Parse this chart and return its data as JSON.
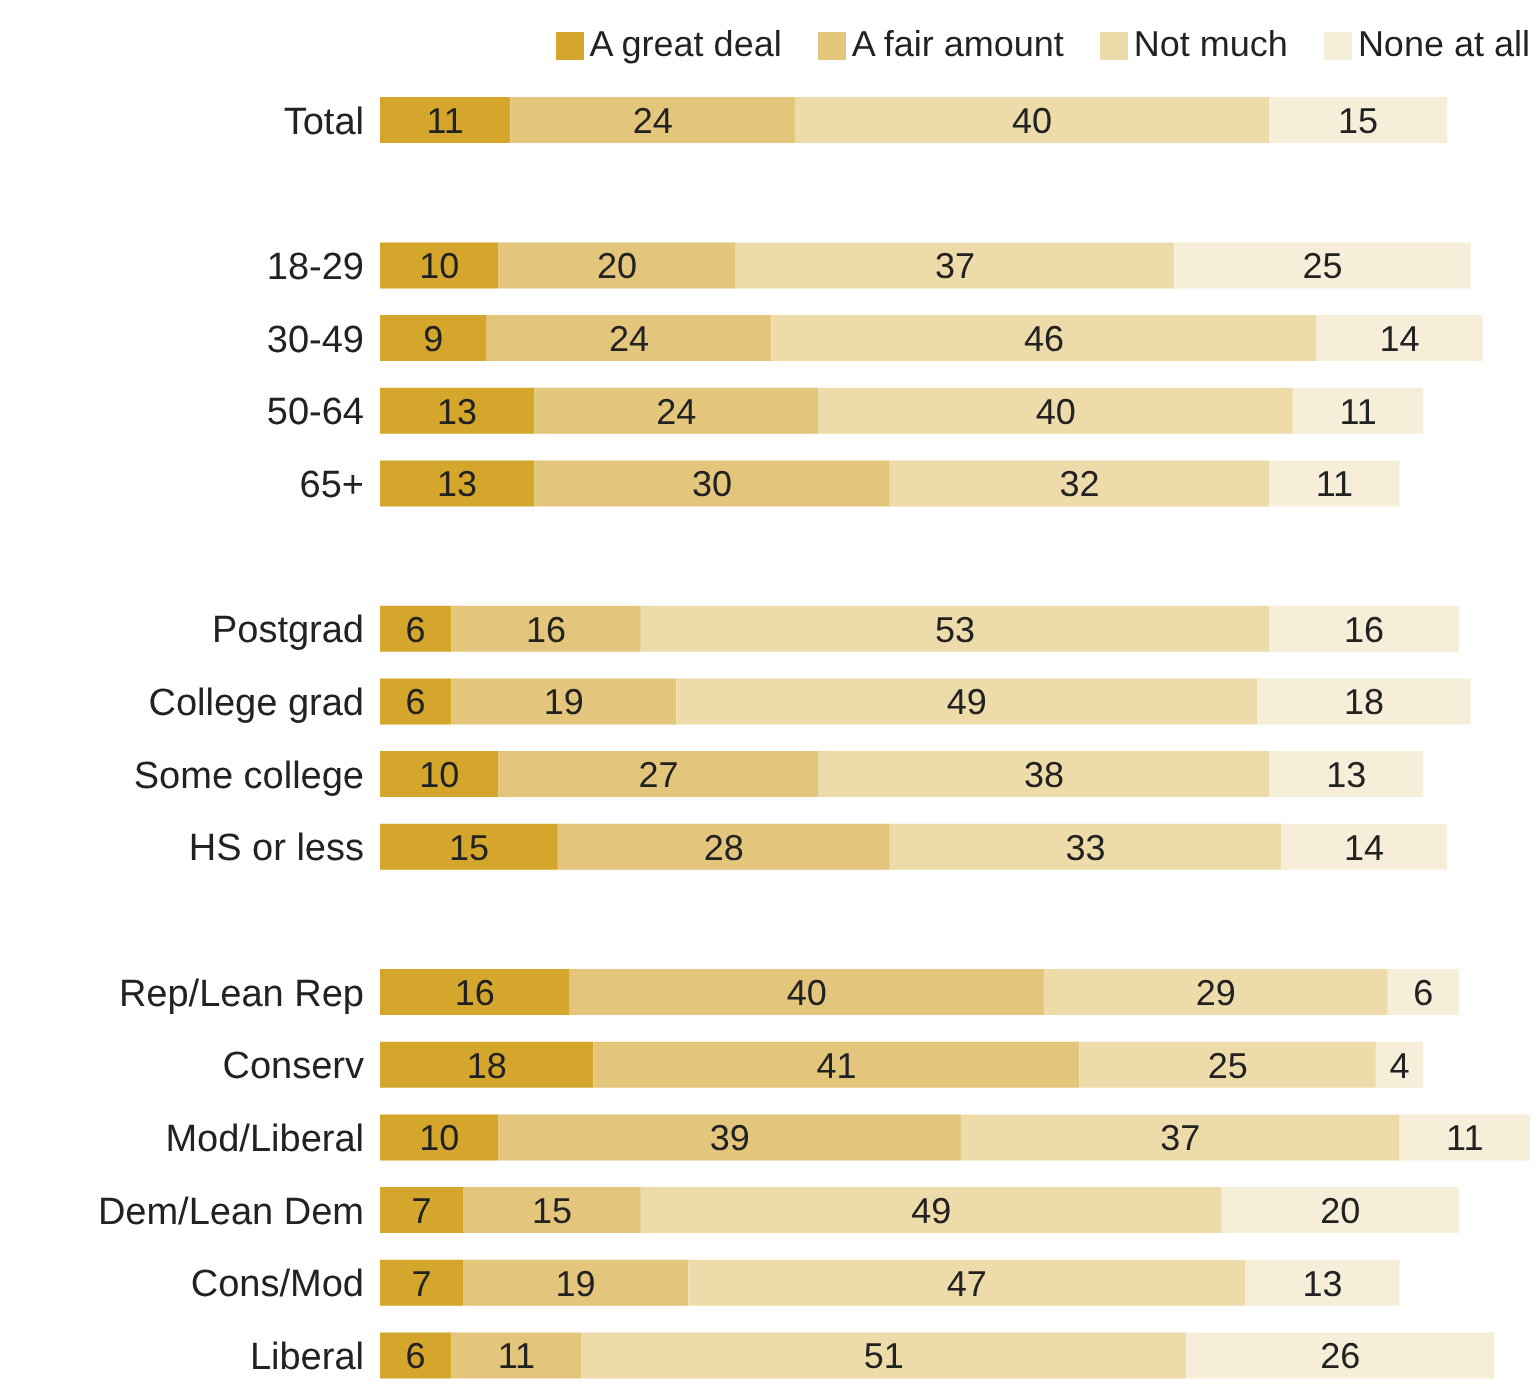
{
  "chart_data": {
    "type": "bar",
    "orientation": "horizontal",
    "stacked": true,
    "data_labels": true,
    "legend": "top",
    "categories": [
      "Total",
      null,
      "18-29",
      "30-49",
      "50-64",
      "65+",
      null,
      "Postgrad",
      "College grad",
      "Some college",
      "HS or less",
      null,
      "Rep/Lean Rep",
      "Conserv",
      "Mod/Liberal",
      "Dem/Lean Dem",
      "Cons/Mod",
      "Liberal"
    ],
    "series": [
      {
        "name": "A great deal",
        "color": "#d4a72c",
        "values": [
          11,
          null,
          10,
          9,
          13,
          13,
          null,
          6,
          6,
          10,
          15,
          null,
          16,
          18,
          10,
          7,
          7,
          6
        ]
      },
      {
        "name": "A fair amount",
        "color": "#e3c67c",
        "values": [
          24,
          null,
          20,
          24,
          24,
          30,
          null,
          16,
          19,
          27,
          28,
          null,
          40,
          41,
          39,
          15,
          19,
          11
        ]
      },
      {
        "name": "Not much",
        "color": "#eddcaa",
        "values": [
          40,
          null,
          37,
          46,
          40,
          32,
          null,
          53,
          49,
          38,
          33,
          null,
          29,
          25,
          37,
          49,
          47,
          51
        ]
      },
      {
        "name": "None at all",
        "color": "#f6eed8",
        "values": [
          15,
          null,
          25,
          14,
          11,
          11,
          null,
          16,
          18,
          13,
          14,
          null,
          6,
          4,
          11,
          20,
          13,
          26
        ]
      }
    ]
  }
}
